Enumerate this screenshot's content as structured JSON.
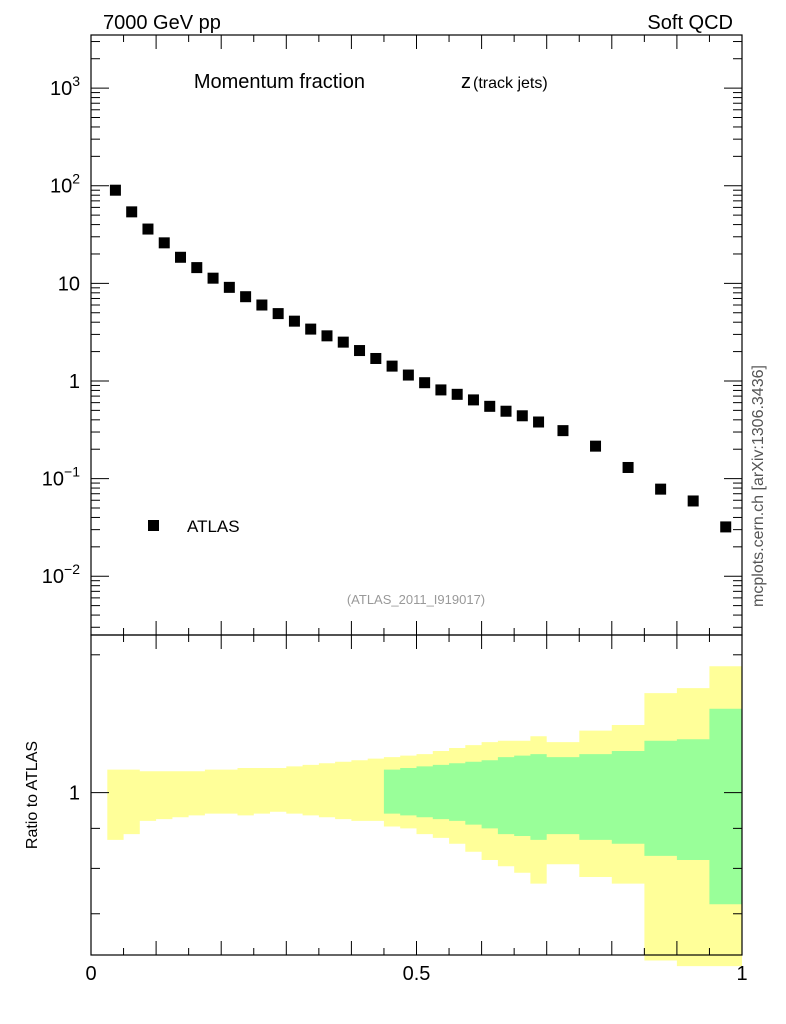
{
  "header": {
    "left_label": "7000 GeV pp",
    "right_label": "Soft QCD"
  },
  "side_label": "mcplots.cern.ch [arXiv:1306.3436]",
  "chart_data": [
    {
      "type": "scatter",
      "title": "Momentum fraction",
      "title_symbol": "z",
      "title_subscript": "(track jets)",
      "analysis_label": "(ATLAS_2011_I919017)",
      "yscale": "log",
      "ylim": [
        0.0025,
        3500
      ],
      "xlim": [
        0,
        1
      ],
      "y_tick_labels": [
        {
          "value": 1000,
          "base": "10",
          "exp": "3"
        },
        {
          "value": 100,
          "base": "10",
          "exp": "2"
        },
        {
          "value": 10,
          "base": "10",
          "exp": ""
        },
        {
          "value": 1,
          "base": "1",
          "exp": ""
        },
        {
          "value": 0.1,
          "base": "10",
          "exp": "−1"
        },
        {
          "value": 0.01,
          "base": "10",
          "exp": "−2"
        }
      ],
      "legend": {
        "entries": [
          "ATLAS"
        ],
        "position": "lower-left"
      },
      "series": [
        {
          "name": "ATLAS",
          "marker": "square",
          "color": "#000000",
          "x": [
            0.0375,
            0.0625,
            0.0875,
            0.1125,
            0.1375,
            0.1625,
            0.1875,
            0.2125,
            0.2375,
            0.2625,
            0.2875,
            0.3125,
            0.3375,
            0.3625,
            0.3875,
            0.4125,
            0.4375,
            0.4625,
            0.4875,
            0.5125,
            0.5375,
            0.5625,
            0.5875,
            0.6125,
            0.6375,
            0.6625,
            0.6875,
            0.725,
            0.775,
            0.825,
            0.875,
            0.925,
            0.975
          ],
          "y": [
            90,
            54,
            36,
            26,
            18.5,
            14.5,
            11.3,
            9.1,
            7.3,
            6.0,
            4.9,
            4.1,
            3.4,
            2.9,
            2.5,
            2.05,
            1.7,
            1.42,
            1.15,
            0.96,
            0.81,
            0.73,
            0.64,
            0.55,
            0.49,
            0.44,
            0.38,
            0.31,
            0.215,
            0.13,
            0.078,
            0.059,
            0.032
          ]
        }
      ]
    },
    {
      "type": "area",
      "ylabel": "Ratio to ATLAS",
      "xlim": [
        0,
        1
      ],
      "ylim": [
        0.62,
        1.59
      ],
      "x_tick_labels": [
        {
          "value": 0,
          "label": "0"
        },
        {
          "value": 0.5,
          "label": "0.5"
        },
        {
          "value": 1,
          "label": "1"
        }
      ],
      "y_tick_labels": [
        {
          "value": 1,
          "label": "1"
        }
      ],
      "bins": [
        0.025,
        0.05,
        0.075,
        0.1,
        0.125,
        0.15,
        0.175,
        0.2,
        0.225,
        0.25,
        0.275,
        0.3,
        0.325,
        0.35,
        0.375,
        0.4,
        0.425,
        0.45,
        0.475,
        0.5,
        0.525,
        0.55,
        0.575,
        0.6,
        0.625,
        0.65,
        0.675,
        0.7,
        0.75,
        0.8,
        0.85,
        0.9,
        0.95,
        1.0
      ],
      "bands": [
        {
          "name": "stat",
          "color": "#99ff99",
          "low": [
            null,
            null,
            null,
            null,
            null,
            null,
            null,
            null,
            null,
            null,
            null,
            null,
            null,
            null,
            null,
            null,
            null,
            0.94,
            0.935,
            0.93,
            0.925,
            0.92,
            0.91,
            0.9,
            0.885,
            0.88,
            0.87,
            0.885,
            0.87,
            0.86,
            0.83,
            0.82,
            0.72
          ],
          "high": [
            null,
            null,
            null,
            null,
            null,
            null,
            null,
            null,
            null,
            null,
            null,
            null,
            null,
            null,
            null,
            null,
            null,
            1.07,
            1.075,
            1.08,
            1.085,
            1.09,
            1.095,
            1.1,
            1.11,
            1.115,
            1.12,
            1.11,
            1.12,
            1.13,
            1.165,
            1.17,
            1.28
          ]
        },
        {
          "name": "total",
          "color": "#ffff99",
          "low": [
            0.87,
            0.885,
            0.92,
            0.925,
            0.93,
            0.935,
            0.94,
            0.94,
            0.935,
            0.94,
            0.945,
            0.94,
            0.935,
            0.93,
            0.925,
            0.92,
            0.92,
            0.905,
            0.9,
            0.885,
            0.875,
            0.86,
            0.84,
            0.82,
            0.805,
            0.79,
            0.765,
            0.81,
            0.78,
            0.765,
            0.61,
            0.6,
            0.6
          ],
          "high": [
            1.07,
            1.07,
            1.065,
            1.065,
            1.065,
            1.065,
            1.07,
            1.07,
            1.075,
            1.075,
            1.075,
            1.08,
            1.085,
            1.09,
            1.095,
            1.1,
            1.105,
            1.11,
            1.115,
            1.12,
            1.13,
            1.14,
            1.15,
            1.16,
            1.165,
            1.165,
            1.18,
            1.16,
            1.2,
            1.22,
            1.34,
            1.36,
            1.45
          ]
        }
      ]
    }
  ]
}
